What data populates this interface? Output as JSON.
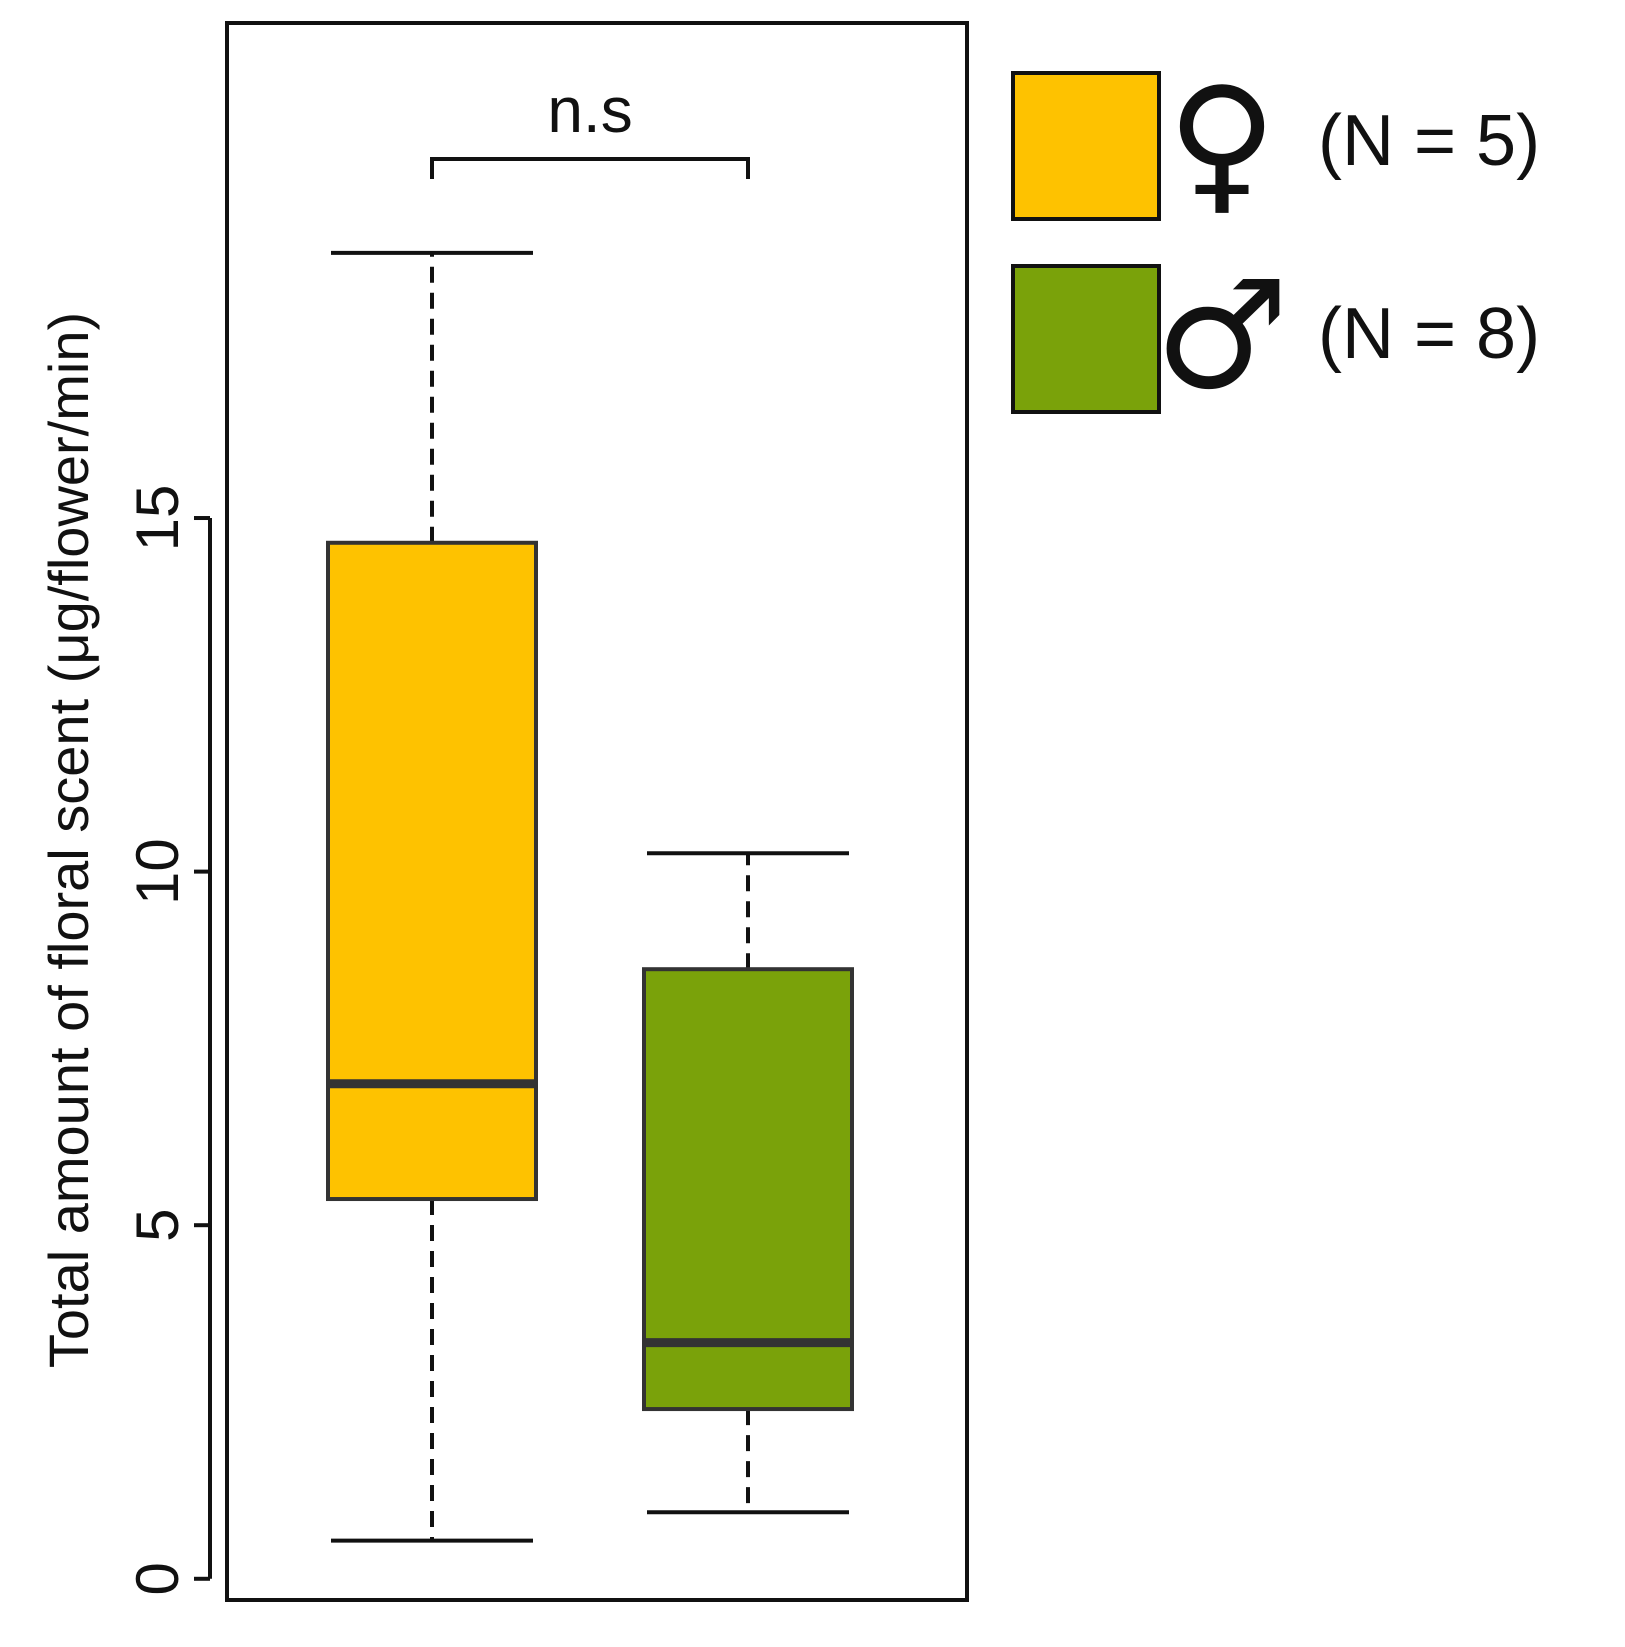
{
  "chart_data": {
    "type": "box",
    "y_label": "Total amount of floral scent (μg/flower/min)",
    "categories": [
      null,
      null
    ],
    "series": [
      {
        "name": "♀",
        "sample_size": "(N = 5)",
        "color": "#fec200",
        "min": 0.54,
        "q1": 5.37,
        "median": 7.0,
        "q3": 14.65,
        "max": 18.75
      },
      {
        "name": "♂",
        "sample_size": "(N = 8)",
        "color": "#7aa20a",
        "min": 0.94,
        "q1": 2.4,
        "median": 3.34,
        "q3": 8.62,
        "max": 10.26
      }
    ],
    "annotation": "n.s",
    "ylim": [
      -0.3,
      22
    ],
    "yticks": [
      0,
      5,
      10,
      15
    ]
  }
}
